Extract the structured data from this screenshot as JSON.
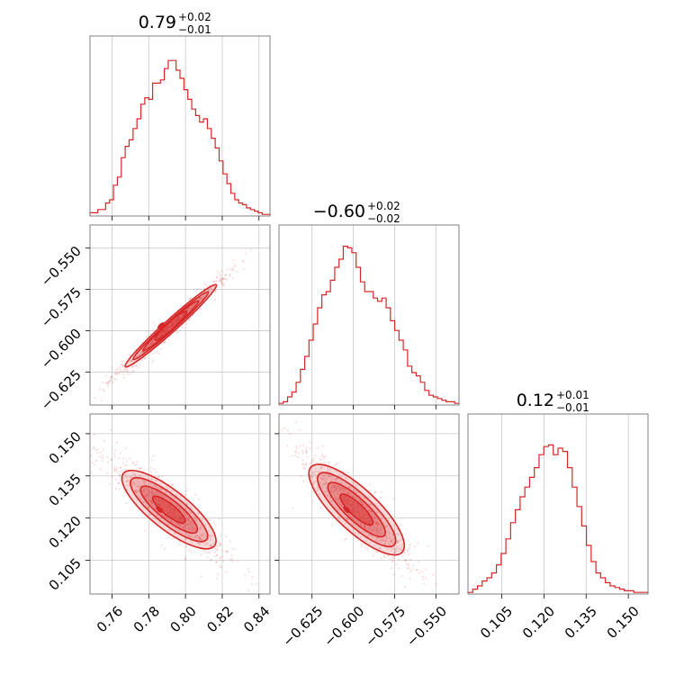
{
  "chart_data": {
    "type": "corner",
    "color": "#d62728",
    "grid": true,
    "params": [
      {
        "range": [
          0.748,
          0.846
        ],
        "ticks": [
          0.76,
          0.78,
          0.8,
          0.82,
          0.84
        ],
        "tick_labels": [
          "0.76",
          "0.78",
          "0.80",
          "0.82",
          "0.84"
        ],
        "title": {
          "median": "0.79",
          "plus": "+0.02",
          "minus": "−0.01"
        },
        "hist": [
          0.02,
          0.02,
          0.04,
          0.04,
          0.08,
          0.1,
          0.19,
          0.24,
          0.36,
          0.43,
          0.47,
          0.54,
          0.6,
          0.69,
          0.73,
          0.72,
          0.82,
          0.82,
          0.84,
          0.91,
          0.96,
          0.96,
          0.9,
          0.85,
          0.78,
          0.72,
          0.66,
          0.62,
          0.58,
          0.6,
          0.54,
          0.48,
          0.42,
          0.34,
          0.26,
          0.2,
          0.14,
          0.1,
          0.08,
          0.07,
          0.05,
          0.04,
          0.03,
          0.02,
          0.01,
          0.01
        ]
      },
      {
        "range": [
          -0.645,
          -0.536
        ],
        "ticks": [
          -0.625,
          -0.6,
          -0.575,
          -0.55
        ],
        "tick_labels": [
          "−0.625",
          "−0.600",
          "−0.575",
          "−0.550"
        ],
        "title": {
          "median": "−0.60",
          "plus": "+0.02",
          "minus": "−0.02"
        },
        "hist": [
          0.01,
          0.02,
          0.05,
          0.08,
          0.14,
          0.22,
          0.3,
          0.4,
          0.5,
          0.6,
          0.68,
          0.7,
          0.77,
          0.85,
          0.9,
          0.98,
          0.97,
          0.94,
          0.85,
          0.76,
          0.7,
          0.7,
          0.66,
          0.64,
          0.66,
          0.6,
          0.52,
          0.46,
          0.4,
          0.34,
          0.24,
          0.2,
          0.18,
          0.14,
          0.09,
          0.06,
          0.05,
          0.04,
          0.03,
          0.02,
          0.02,
          0.01
        ]
      },
      {
        "range": [
          0.093,
          0.157
        ],
        "ticks": [
          0.105,
          0.12,
          0.135,
          0.15
        ],
        "tick_labels": [
          "0.105",
          "0.120",
          "0.135",
          "0.150"
        ],
        "title": {
          "median": "0.12",
          "plus": "+0.01",
          "minus": "−0.01"
        },
        "hist": [
          0.01,
          0.03,
          0.05,
          0.08,
          0.1,
          0.13,
          0.18,
          0.25,
          0.34,
          0.44,
          0.52,
          0.6,
          0.66,
          0.72,
          0.78,
          0.86,
          0.91,
          0.92,
          0.86,
          0.9,
          0.88,
          0.78,
          0.66,
          0.54,
          0.42,
          0.3,
          0.2,
          0.13,
          0.1,
          0.07,
          0.05,
          0.04,
          0.03,
          0.02,
          0.02,
          0.01,
          0.01,
          0.01
        ]
      }
    ],
    "pairs": [
      {
        "x": 0,
        "y": 1,
        "center": [
          0.792,
          -0.597
        ],
        "slope": 1.0,
        "width": 0.0012
      },
      {
        "x": 0,
        "y": 2,
        "center": [
          0.791,
          0.123
        ],
        "slope": -0.52,
        "width": 0.0022
      },
      {
        "x": 1,
        "y": 2,
        "center": [
          -0.598,
          0.123
        ],
        "slope": -0.55,
        "width": 0.0024
      }
    ]
  }
}
